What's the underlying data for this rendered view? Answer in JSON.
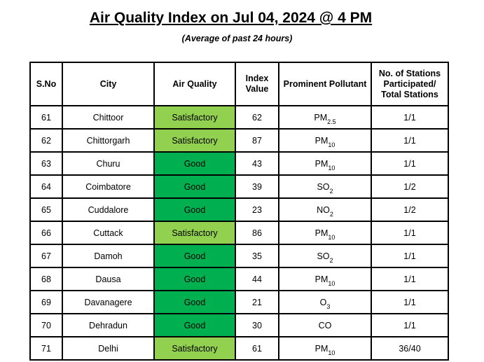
{
  "title": "Air Quality Index on Jul 04, 2024 @ 4 PM",
  "subtitle": "(Average of past 24 hours)",
  "colors": {
    "satisfactory": "#92d050",
    "good": "#00b050"
  },
  "headers": {
    "sno": "S.No",
    "city": "City",
    "air_quality": "Air Quality",
    "index_value_line1": "Index",
    "index_value_line2": "Value",
    "pollutant": "Prominent Pollutant",
    "stations_line1": "No. of Stations",
    "stations_line2": "Participated/",
    "stations_line3": "Total Stations"
  },
  "rows": [
    {
      "sno": "61",
      "city": "Chittoor",
      "aq": "Satisfactory",
      "aq_class": "satisfactory",
      "index": "62",
      "pol_base": "PM",
      "pol_sub": "2.5",
      "stations": "1/1"
    },
    {
      "sno": "62",
      "city": "Chittorgarh",
      "aq": "Satisfactory",
      "aq_class": "satisfactory",
      "index": "87",
      "pol_base": "PM",
      "pol_sub": "10",
      "stations": "1/1"
    },
    {
      "sno": "63",
      "city": "Churu",
      "aq": "Good",
      "aq_class": "good",
      "index": "43",
      "pol_base": "PM",
      "pol_sub": "10",
      "stations": "1/1"
    },
    {
      "sno": "64",
      "city": "Coimbatore",
      "aq": "Good",
      "aq_class": "good",
      "index": "39",
      "pol_base": "SO",
      "pol_sub": "2",
      "stations": "1/2"
    },
    {
      "sno": "65",
      "city": "Cuddalore",
      "aq": "Good",
      "aq_class": "good",
      "index": "23",
      "pol_base": "NO",
      "pol_sub": "2",
      "stations": "1/2"
    },
    {
      "sno": "66",
      "city": "Cuttack",
      "aq": "Satisfactory",
      "aq_class": "satisfactory",
      "index": "86",
      "pol_base": "PM",
      "pol_sub": "10",
      "stations": "1/1"
    },
    {
      "sno": "67",
      "city": "Damoh",
      "aq": "Good",
      "aq_class": "good",
      "index": "35",
      "pol_base": "SO",
      "pol_sub": "2",
      "stations": "1/1"
    },
    {
      "sno": "68",
      "city": "Dausa",
      "aq": "Good",
      "aq_class": "good",
      "index": "44",
      "pol_base": "PM",
      "pol_sub": "10",
      "stations": "1/1"
    },
    {
      "sno": "69",
      "city": "Davanagere",
      "aq": "Good",
      "aq_class": "good",
      "index": "21",
      "pol_base": "O",
      "pol_sub": "3",
      "stations": "1/1"
    },
    {
      "sno": "70",
      "city": "Dehradun",
      "aq": "Good",
      "aq_class": "good",
      "index": "30",
      "pol_base": "CO",
      "pol_sub": "",
      "stations": "1/1"
    },
    {
      "sno": "71",
      "city": "Delhi",
      "aq": "Satisfactory",
      "aq_class": "satisfactory",
      "index": "61",
      "pol_base": "PM",
      "pol_sub": "10",
      "stations": "36/40"
    }
  ]
}
